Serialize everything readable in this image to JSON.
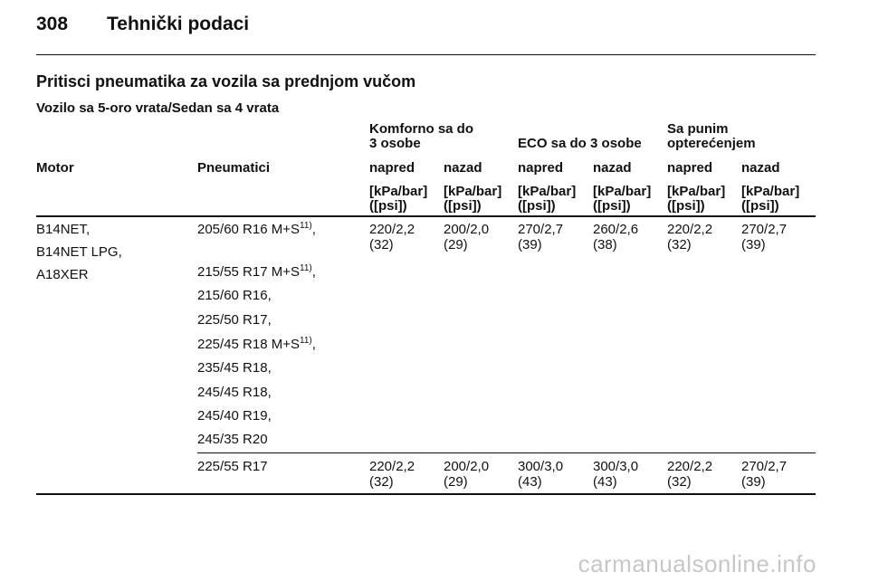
{
  "header": {
    "page_number": "308",
    "title": "Tehnički podaci"
  },
  "section_title": "Pritisci pneumatika za vozila sa prednjom vučom",
  "subsection_title": "Vozilo sa 5-oro vrata/Sedan sa 4 vrata",
  "table": {
    "groups": [
      {
        "line1": "Komforno sa do",
        "line2": "3 osobe"
      },
      {
        "line1": "",
        "line2": "ECO sa do 3 osobe"
      },
      {
        "line1": "Sa punim",
        "line2": "opterećenjem"
      }
    ],
    "columns": [
      "Motor",
      "Pneumatici",
      "napred",
      "nazad",
      "napred",
      "nazad",
      "napred",
      "nazad"
    ],
    "unit_line1": "[kPa/bar]",
    "unit_line2": "([psi])",
    "engines": [
      "B14NET,",
      "B14NET LPG,",
      "A18XER"
    ],
    "tyres_group1": [
      {
        "text": "205/60 R16 M+S",
        "footnote": "11)",
        "suffix": ","
      },
      {
        "text": "215/55 R17 M+S",
        "footnote": "11)",
        "suffix": ","
      },
      {
        "text": "215/60 R16,",
        "footnote": "",
        "suffix": ""
      },
      {
        "text": "225/50 R17,",
        "footnote": "",
        "suffix": ""
      },
      {
        "text": "225/45 R18 M+S",
        "footnote": "11)",
        "suffix": ","
      },
      {
        "text": "235/45 R18,",
        "footnote": "",
        "suffix": ""
      },
      {
        "text": "245/45 R18,",
        "footnote": "",
        "suffix": ""
      },
      {
        "text": "245/40 R19,",
        "footnote": "",
        "suffix": ""
      },
      {
        "text": "245/35 R20",
        "footnote": "",
        "suffix": ""
      }
    ],
    "values_group1": [
      {
        "kpa_bar": "220/2,2",
        "psi": "(32)"
      },
      {
        "kpa_bar": "200/2,0",
        "psi": "(29)"
      },
      {
        "kpa_bar": "270/2,7",
        "psi": "(39)"
      },
      {
        "kpa_bar": "260/2,6",
        "psi": "(38)"
      },
      {
        "kpa_bar": "220/2,2",
        "psi": "(32)"
      },
      {
        "kpa_bar": "270/2,7",
        "psi": "(39)"
      }
    ],
    "tyre_group2": "225/55 R17",
    "values_group2": [
      {
        "kpa_bar": "220/2,2",
        "psi": "(32)"
      },
      {
        "kpa_bar": "200/2,0",
        "psi": "(29)"
      },
      {
        "kpa_bar": "300/3,0",
        "psi": "(43)"
      },
      {
        "kpa_bar": "300/3,0",
        "psi": "(43)"
      },
      {
        "kpa_bar": "220/2,2",
        "psi": "(32)"
      },
      {
        "kpa_bar": "270/2,7",
        "psi": "(39)"
      }
    ]
  },
  "watermark": "carmanualsonline.info"
}
